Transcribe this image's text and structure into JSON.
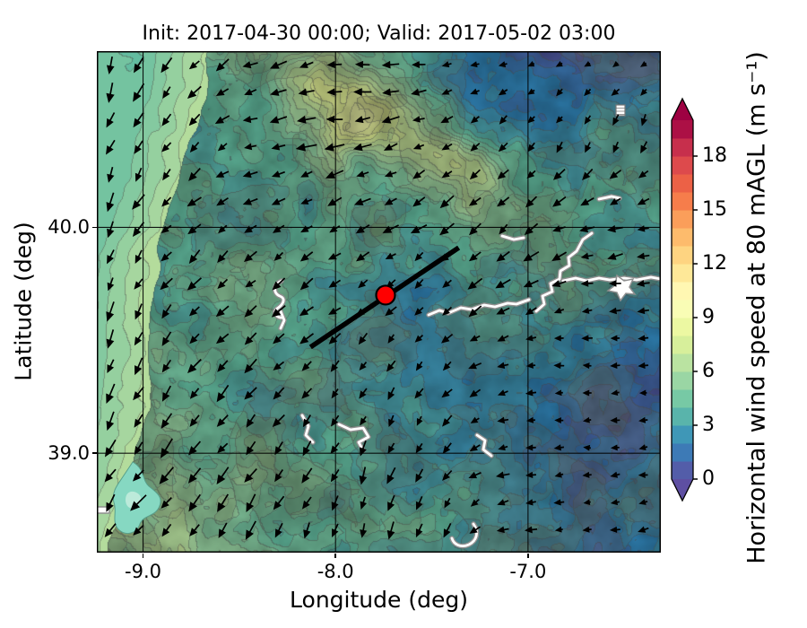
{
  "chart_data": {
    "type": "heatmap",
    "map_overlay": true,
    "title": "Init: 2017-04-30 00:00; Valid: 2017-05-02 03:00",
    "xlabel": "Longitude (deg)",
    "ylabel": "Latitude (deg)",
    "xlim": [
      -9.24,
      -6.31
    ],
    "ylim": [
      38.56,
      40.78
    ],
    "grid": true,
    "xticks": [
      {
        "value": -9.0,
        "label": "-9.0"
      },
      {
        "value": -8.0,
        "label": "-8.0"
      },
      {
        "value": -7.0,
        "label": "-7.0"
      }
    ],
    "yticks": [
      {
        "value": 40.0,
        "label": "40.0"
      },
      {
        "value": 39.0,
        "label": "39.0"
      }
    ],
    "colorbar": {
      "label": "Horizontal wind speed at 80 mAGL (m s⁻¹)",
      "ticks": [
        0,
        3,
        6,
        9,
        12,
        15,
        18
      ],
      "tick_labels": [
        "0",
        "3",
        "6",
        "9",
        "12",
        "15",
        "18"
      ],
      "range": [
        0,
        20
      ],
      "extend": "both",
      "colormap": "Spectral_r",
      "stops": [
        "#5e4fa2",
        "#3288bd",
        "#66c2a5",
        "#abdda4",
        "#e6f598",
        "#ffffbf",
        "#fee08b",
        "#fdae61",
        "#f46d43",
        "#d53e4f",
        "#9e0142"
      ]
    },
    "marker": {
      "name": "site-marker",
      "lon": -7.74,
      "lat": 39.7,
      "color": "#ff0000",
      "edge_color": "#000000"
    },
    "transect_line": {
      "from": {
        "lon": -8.13,
        "lat": 39.47
      },
      "to": {
        "lon": -7.36,
        "lat": 39.91
      },
      "color": "#000000"
    },
    "wind_field": {
      "units": "m s-1",
      "convention": "vector points toward; degrees CCW from east (north = 90)",
      "grid": "8 cols (west to east) x 7 rows (north to south), uniform over plot extent",
      "speed_ms": [
        [
          5.0,
          4.4,
          3.8,
          3.9,
          3.4,
          1.0,
          0.8,
          1.1
        ],
        [
          5.0,
          4.0,
          3.4,
          5.8,
          3.0,
          2.6,
          2.4,
          2.9
        ],
        [
          5.1,
          3.4,
          3.1,
          3.6,
          3.9,
          4.4,
          3.9,
          3.4
        ],
        [
          5.2,
          4.1,
          4.4,
          3.4,
          3.1,
          3.9,
          2.9,
          2.4
        ],
        [
          5.2,
          5.0,
          4.1,
          3.0,
          2.6,
          2.2,
          1.3,
          1.6
        ],
        [
          5.0,
          5.4,
          4.6,
          3.8,
          3.8,
          3.0,
          1.3,
          1.9
        ],
        [
          4.8,
          5.5,
          5.0,
          4.2,
          4.0,
          2.6,
          1.6,
          2.1
        ]
      ],
      "direction_toward_deg": [
        [
          255,
          235,
          200,
          190,
          175,
          195,
          205,
          215
        ],
        [
          252,
          228,
          195,
          185,
          205,
          235,
          245,
          250
        ],
        [
          250,
          222,
          212,
          215,
          215,
          222,
          205,
          185
        ],
        [
          248,
          228,
          220,
          215,
          222,
          218,
          185,
          175
        ],
        [
          245,
          232,
          228,
          235,
          235,
          195,
          180,
          185
        ],
        [
          240,
          232,
          235,
          245,
          250,
          190,
          182,
          190
        ],
        [
          235,
          230,
          240,
          250,
          255,
          205,
          188,
          192
        ]
      ]
    },
    "map_features": {
      "ocean_color": "#66c2a5",
      "coastal_band_color": "#b9e3a6",
      "river_color": "#ffffff",
      "river_casing_color": "#8f8f8f",
      "estuary_color": "#86d8c2",
      "terrain_tint": "#8a8a5c",
      "contour_line_color": "#707070",
      "grid_line_color": "#000000",
      "quiver_color": "#000000"
    }
  }
}
